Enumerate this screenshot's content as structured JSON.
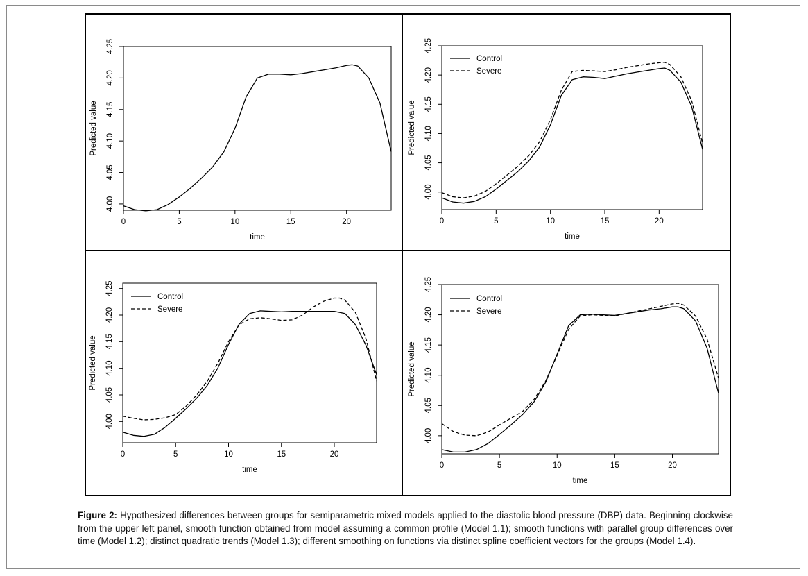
{
  "caption": {
    "label": "Figure 2:",
    "text": "Hypothesized differences between groups for semiparametric mixed models applied to the diastolic blood pressure (DBP) data. Beginning clockwise from the upper left panel, smooth function obtained from model assuming a common profile (Model 1.1); smooth functions with parallel group differences over time (Model 1.2); distinct quadratic trends (Model 1.3); different smoothing on functions via distinct spline coefficient vectors for the groups (Model 1.4)."
  },
  "chart_data": [
    {
      "panel": "top-left",
      "type": "line",
      "xlabel": "time",
      "ylabel": "Predicted value",
      "xlim": [
        0,
        24
      ],
      "ylim": [
        3.99,
        4.25
      ],
      "xticks": [
        0,
        5,
        10,
        15,
        20
      ],
      "yticks": [
        4.0,
        4.05,
        4.1,
        4.15,
        4.2,
        4.25
      ],
      "legend": null,
      "series": [
        {
          "dash": "solid",
          "x": [
            0,
            1,
            2,
            3,
            4,
            5,
            6,
            7,
            8,
            9,
            10,
            11,
            12,
            13,
            14,
            15,
            16,
            17,
            18,
            19,
            20,
            20.5,
            21,
            22,
            23,
            24
          ],
          "y": [
            3.997,
            3.991,
            3.989,
            3.991,
            3.999,
            4.011,
            4.025,
            4.041,
            4.059,
            4.083,
            4.12,
            4.17,
            4.2,
            4.206,
            4.206,
            4.205,
            4.207,
            4.21,
            4.213,
            4.216,
            4.22,
            4.221,
            4.219,
            4.2,
            4.16,
            4.083
          ]
        }
      ]
    },
    {
      "panel": "top-right",
      "type": "line",
      "xlabel": "time",
      "ylabel": "Predicted value",
      "xlim": [
        0,
        24
      ],
      "ylim": [
        3.97,
        4.25
      ],
      "xticks": [
        0,
        5,
        10,
        15,
        20
      ],
      "yticks": [
        4.0,
        4.05,
        4.1,
        4.15,
        4.2,
        4.25
      ],
      "legend": "top-left",
      "series": [
        {
          "name": "Control",
          "dash": "solid",
          "x": [
            0,
            1,
            2,
            3,
            4,
            5,
            6,
            7,
            8,
            9,
            10,
            11,
            12,
            13,
            14,
            15,
            16,
            17,
            18,
            19,
            20,
            20.5,
            21,
            22,
            23,
            24
          ],
          "y": [
            3.99,
            3.983,
            3.981,
            3.984,
            3.992,
            4.005,
            4.02,
            4.035,
            4.053,
            4.077,
            4.115,
            4.165,
            4.192,
            4.197,
            4.196,
            4.194,
            4.198,
            4.202,
            4.205,
            4.208,
            4.211,
            4.212,
            4.208,
            4.188,
            4.146,
            4.073
          ]
        },
        {
          "name": "Severe",
          "dash": "dashed",
          "x": [
            0,
            1,
            2,
            3,
            4,
            5,
            6,
            7,
            8,
            9,
            10,
            11,
            12,
            13,
            14,
            15,
            16,
            17,
            18,
            19,
            20,
            20.5,
            21,
            22,
            23,
            24
          ],
          "y": [
            3.999,
            3.992,
            3.99,
            3.993,
            4.001,
            4.014,
            4.029,
            4.044,
            4.062,
            4.086,
            4.124,
            4.174,
            4.206,
            4.208,
            4.207,
            4.206,
            4.209,
            4.213,
            4.216,
            4.219,
            4.221,
            4.222,
            4.218,
            4.197,
            4.156,
            4.083
          ]
        }
      ]
    },
    {
      "panel": "bottom-left",
      "type": "line",
      "xlabel": "time",
      "ylabel": "Predicted value",
      "xlim": [
        0,
        24
      ],
      "ylim": [
        3.96,
        4.26
      ],
      "xticks": [
        0,
        5,
        10,
        15,
        20
      ],
      "yticks": [
        4.0,
        4.05,
        4.1,
        4.15,
        4.2,
        4.25
      ],
      "legend": "top-left",
      "series": [
        {
          "name": "Control",
          "dash": "solid",
          "x": [
            0,
            1,
            2,
            3,
            4,
            5,
            6,
            7,
            8,
            9,
            10,
            11,
            12,
            13,
            14,
            15,
            16,
            17,
            18,
            19,
            20,
            21,
            22,
            23,
            24
          ],
          "y": [
            3.98,
            3.974,
            3.972,
            3.976,
            3.989,
            4.006,
            4.024,
            4.044,
            4.068,
            4.101,
            4.145,
            4.183,
            4.203,
            4.208,
            4.207,
            4.206,
            4.207,
            4.207,
            4.207,
            4.207,
            4.207,
            4.203,
            4.182,
            4.143,
            4.088
          ]
        },
        {
          "name": "Severe",
          "dash": "dashed",
          "x": [
            0,
            1,
            2,
            3,
            4,
            5,
            6,
            7,
            8,
            9,
            10,
            11,
            12,
            13,
            14,
            15,
            16,
            17,
            18,
            19,
            20,
            20.5,
            21,
            22,
            23,
            24
          ],
          "y": [
            4.01,
            4.006,
            4.003,
            4.004,
            4.007,
            4.013,
            4.029,
            4.05,
            4.076,
            4.11,
            4.15,
            4.182,
            4.193,
            4.195,
            4.193,
            4.19,
            4.191,
            4.2,
            4.215,
            4.226,
            4.232,
            4.232,
            4.228,
            4.205,
            4.155,
            4.076
          ]
        }
      ]
    },
    {
      "panel": "bottom-right",
      "type": "line",
      "xlabel": "time",
      "ylabel": "Predicted value",
      "xlim": [
        0,
        24
      ],
      "ylim": [
        3.97,
        4.25
      ],
      "xticks": [
        0,
        5,
        10,
        15,
        20
      ],
      "yticks": [
        4.0,
        4.05,
        4.1,
        4.15,
        4.2,
        4.25
      ],
      "legend": "top-left",
      "series": [
        {
          "name": "Control",
          "dash": "solid",
          "x": [
            0,
            1,
            2,
            3,
            4,
            5,
            6,
            7,
            8,
            9,
            10,
            11,
            12,
            13,
            14,
            15,
            16,
            17,
            18,
            19,
            20,
            20.5,
            21,
            22,
            23,
            24
          ],
          "y": [
            3.977,
            3.973,
            3.973,
            3.977,
            3.987,
            4.002,
            4.018,
            4.035,
            4.056,
            4.088,
            4.135,
            4.182,
            4.2,
            4.201,
            4.2,
            4.199,
            4.202,
            4.205,
            4.208,
            4.21,
            4.213,
            4.213,
            4.21,
            4.19,
            4.145,
            4.07
          ]
        },
        {
          "name": "Severe",
          "dash": "dashed",
          "x": [
            0,
            1,
            2,
            3,
            4,
            5,
            6,
            7,
            8,
            9,
            10,
            11,
            12,
            13,
            14,
            15,
            16,
            17,
            18,
            19,
            20,
            20.5,
            21,
            22,
            23,
            24
          ],
          "y": [
            4.02,
            4.007,
            4.001,
            4.0,
            4.006,
            4.018,
            4.029,
            4.04,
            4.06,
            4.09,
            4.133,
            4.176,
            4.198,
            4.2,
            4.199,
            4.198,
            4.202,
            4.206,
            4.21,
            4.214,
            4.218,
            4.219,
            4.216,
            4.198,
            4.16,
            4.095
          ]
        }
      ]
    }
  ]
}
